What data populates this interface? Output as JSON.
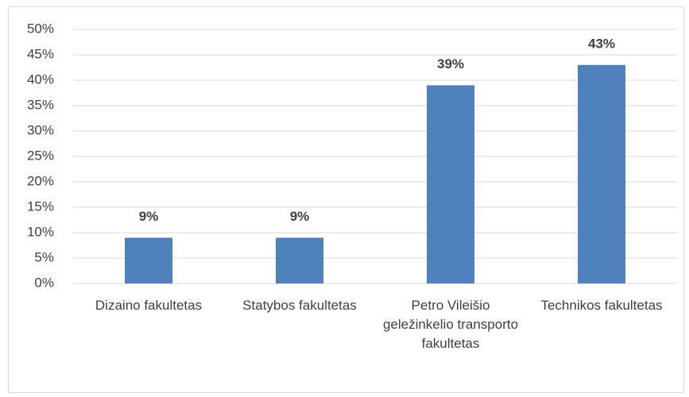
{
  "chart_data": {
    "type": "bar",
    "categories": [
      "Dizaino fakultetas",
      "Statybos fakultetas",
      "Petro Vileišio geležinkelio transporto fakultetas",
      "Technikos fakultetas"
    ],
    "values": [
      9,
      9,
      39,
      43
    ],
    "value_labels": [
      "9%",
      "9%",
      "39%",
      "43%"
    ],
    "color": "#4f81bd",
    "ylim": [
      0,
      50
    ],
    "yticks": [
      {
        "value": 0,
        "label": "0%"
      },
      {
        "value": 5,
        "label": "5%"
      },
      {
        "value": 10,
        "label": "10%"
      },
      {
        "value": 15,
        "label": "15%"
      },
      {
        "value": 20,
        "label": "20%"
      },
      {
        "value": 25,
        "label": "25%"
      },
      {
        "value": 30,
        "label": "30%"
      },
      {
        "value": 35,
        "label": "35%"
      },
      {
        "value": 40,
        "label": "40%"
      },
      {
        "value": 45,
        "label": "45%"
      },
      {
        "value": 50,
        "label": "50%"
      }
    ],
    "grid": true
  }
}
